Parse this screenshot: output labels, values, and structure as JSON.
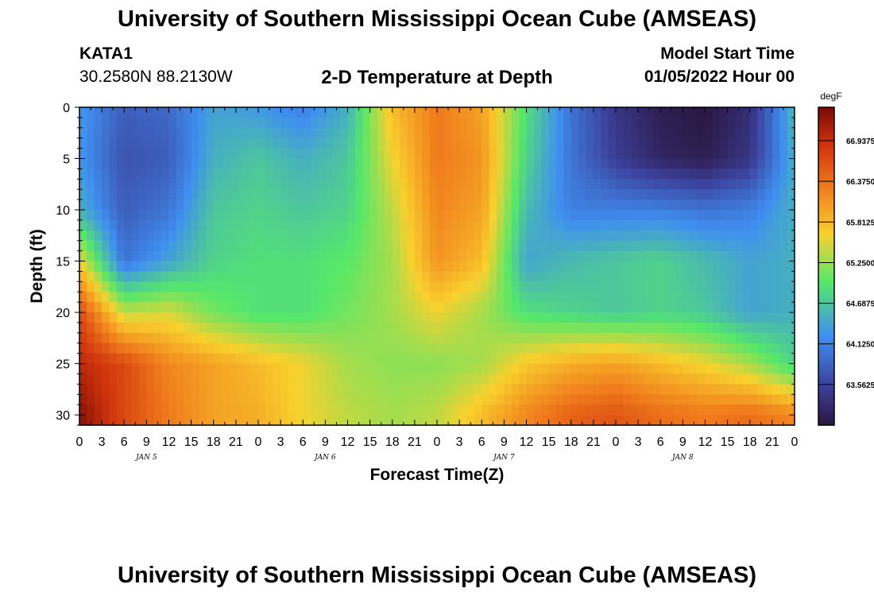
{
  "header": {
    "title": "University of Southern Mississippi Ocean Cube (AMSEAS)",
    "station": "KATA1",
    "coords": "30.2580N  88.2130W",
    "start_label": "Model Start Time",
    "start_value": "01/05/2022 Hour 00"
  },
  "footer": {
    "title": "University of Southern Mississippi Ocean Cube (AMSEAS)"
  },
  "colors": {
    "min": "#2a1740",
    "cold": "#3f6fd8",
    "mid": "#56e86a",
    "warm": "#f9c52e",
    "hot": "#e84a12",
    "max": "#7a0a06"
  },
  "chart_data": {
    "type": "heatmap",
    "title": "2-D Temperature at Depth",
    "xlabel": "Forecast Time(Z)",
    "ylabel": "Depth (ft)",
    "x_range_hours": [
      0,
      96
    ],
    "y_range_ft": [
      0,
      31
    ],
    "x_tick_labels": [
      "0",
      "3",
      "6",
      "9",
      "12",
      "15",
      "18",
      "21",
      "0",
      "3",
      "6",
      "9",
      "12",
      "15",
      "18",
      "21",
      "0",
      "3",
      "6",
      "9",
      "12",
      "15",
      "18",
      "21",
      "0",
      "3",
      "6",
      "9",
      "12",
      "15",
      "18",
      "21",
      "0"
    ],
    "date_labels": [
      "JAN 5",
      "JAN 6",
      "JAN 7",
      "JAN 8"
    ],
    "y_ticks": [
      0,
      5,
      10,
      15,
      20,
      25,
      30
    ],
    "y_tick_labels": [
      "0",
      "5",
      "10",
      "15",
      "20",
      "25",
      "30"
    ],
    "colorbar": {
      "unit": "degF",
      "labels": [
        "66.9375",
        "66.3750",
        "65.8125",
        "65.2500",
        "64.6875",
        "64.1250",
        "63.5625"
      ],
      "range": [
        63.0,
        67.4
      ]
    },
    "time_hours": [
      0,
      6,
      12,
      18,
      24,
      30,
      36,
      42,
      48,
      54,
      60,
      66,
      72,
      78,
      84,
      90,
      96
    ],
    "depths_ft": [
      0,
      5,
      10,
      15,
      20,
      25,
      30
    ],
    "temperature_degF": [
      [
        64.3,
        63.8,
        63.9,
        64.4,
        64.3,
        64.1,
        64.5,
        65.8,
        66.3,
        66.0,
        64.9,
        64.0,
        63.4,
        63.1,
        63.0,
        63.3,
        64.6
      ],
      [
        64.3,
        63.7,
        63.8,
        64.5,
        64.7,
        64.5,
        64.7,
        65.6,
        66.3,
        66.1,
        64.8,
        64.0,
        63.5,
        63.2,
        63.1,
        63.4,
        64.5
      ],
      [
        64.5,
        63.8,
        64.0,
        64.7,
        64.8,
        64.7,
        64.8,
        65.4,
        66.2,
        66.0,
        64.6,
        64.1,
        64.1,
        64.1,
        64.0,
        64.1,
        64.5
      ],
      [
        65.6,
        64.0,
        64.4,
        64.8,
        64.9,
        64.9,
        65.0,
        65.3,
        66.1,
        65.8,
        64.4,
        64.6,
        64.7,
        64.8,
        64.6,
        64.4,
        64.5
      ],
      [
        66.7,
        65.4,
        65.5,
        65.1,
        64.9,
        64.9,
        65.1,
        65.3,
        65.6,
        65.3,
        64.9,
        64.8,
        64.7,
        64.8,
        64.7,
        64.4,
        64.5
      ],
      [
        67.0,
        66.7,
        66.2,
        66.0,
        65.8,
        65.6,
        65.3,
        65.2,
        65.2,
        65.3,
        65.7,
        65.9,
        66.0,
        65.8,
        65.6,
        65.3,
        64.8
      ],
      [
        67.3,
        66.7,
        66.3,
        66.0,
        65.9,
        65.6,
        65.4,
        65.3,
        65.4,
        65.8,
        66.2,
        66.5,
        66.6,
        66.4,
        66.3,
        66.4,
        66.2
      ]
    ]
  }
}
